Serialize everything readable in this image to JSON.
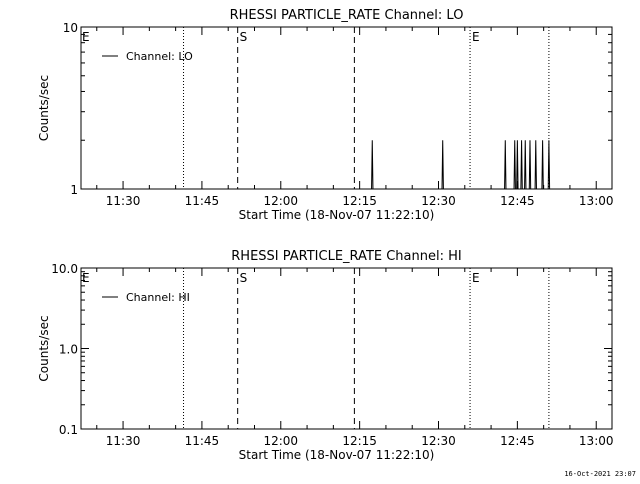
{
  "footer": {
    "timestamp": "16-Oct-2021 23:07"
  },
  "chart_data": [
    {
      "type": "line",
      "title": "RHESSI PARTICLE_RATE Channel: LO",
      "xlabel": "Start Time (18-Nov-07 11:22:10)",
      "ylabel": "Counts/sec",
      "yscale": "log",
      "ylim": [
        1,
        10
      ],
      "ytick_labels": [
        {
          "v": 1,
          "t": "1"
        },
        {
          "v": 10,
          "t": "10"
        }
      ],
      "xlim_minutes": [
        682,
        783
      ],
      "xtick_labels": [
        {
          "m": 690,
          "t": "11:30"
        },
        {
          "m": 705,
          "t": "11:45"
        },
        {
          "m": 720,
          "t": "12:00"
        },
        {
          "m": 735,
          "t": "12:15"
        },
        {
          "m": 750,
          "t": "12:30"
        },
        {
          "m": 765,
          "t": "12:45"
        },
        {
          "m": 780,
          "t": "13:00"
        }
      ],
      "legend": {
        "position": "top-left",
        "label": "Channel: LO"
      },
      "markers": [
        {
          "m": 701.5,
          "style": "dotted",
          "text": ""
        },
        {
          "m": 711.8,
          "style": "dashed",
          "text": "S"
        },
        {
          "m": 734,
          "style": "dashed",
          "text": ""
        },
        {
          "m": 756,
          "style": "dotted",
          "text": "E"
        },
        {
          "m": 771,
          "style": "dotted",
          "text": ""
        }
      ],
      "edge_labels": [
        {
          "m": 682.2,
          "text": "E"
        }
      ],
      "spikes": [
        {
          "m": 737.4,
          "value": 2
        },
        {
          "m": 750.8,
          "value": 2
        },
        {
          "m": 762.7,
          "value": 2
        },
        {
          "m": 764.5,
          "value": 2
        },
        {
          "m": 765.0,
          "value": 2
        },
        {
          "m": 765.8,
          "value": 2
        },
        {
          "m": 766.5,
          "value": 2
        },
        {
          "m": 767.4,
          "value": 2
        },
        {
          "m": 768.5,
          "value": 2
        },
        {
          "m": 769.8,
          "value": 2
        },
        {
          "m": 771.0,
          "value": 2
        }
      ]
    },
    {
      "type": "line",
      "title": "RHESSI PARTICLE_RATE Channel: HI",
      "xlabel": "Start Time (18-Nov-07 11:22:10)",
      "ylabel": "Counts/sec",
      "yscale": "log",
      "ylim": [
        0.1,
        10
      ],
      "ytick_labels": [
        {
          "v": 0.1,
          "t": "0.1"
        },
        {
          "v": 1,
          "t": "1.0"
        },
        {
          "v": 10,
          "t": "10.0"
        }
      ],
      "xlim_minutes": [
        682,
        783
      ],
      "xtick_labels": [
        {
          "m": 690,
          "t": "11:30"
        },
        {
          "m": 705,
          "t": "11:45"
        },
        {
          "m": 720,
          "t": "12:00"
        },
        {
          "m": 735,
          "t": "12:15"
        },
        {
          "m": 750,
          "t": "12:30"
        },
        {
          "m": 765,
          "t": "12:45"
        },
        {
          "m": 780,
          "t": "13:00"
        }
      ],
      "legend": {
        "position": "top-left",
        "label": "Channel: HI"
      },
      "markers": [
        {
          "m": 701.5,
          "style": "dotted",
          "text": ""
        },
        {
          "m": 711.8,
          "style": "dashed",
          "text": "S"
        },
        {
          "m": 734,
          "style": "dashed",
          "text": ""
        },
        {
          "m": 756,
          "style": "dotted",
          "text": "E"
        },
        {
          "m": 771,
          "style": "dotted",
          "text": ""
        }
      ],
      "edge_labels": [
        {
          "m": 682.2,
          "text": "E"
        }
      ],
      "spikes": []
    }
  ]
}
